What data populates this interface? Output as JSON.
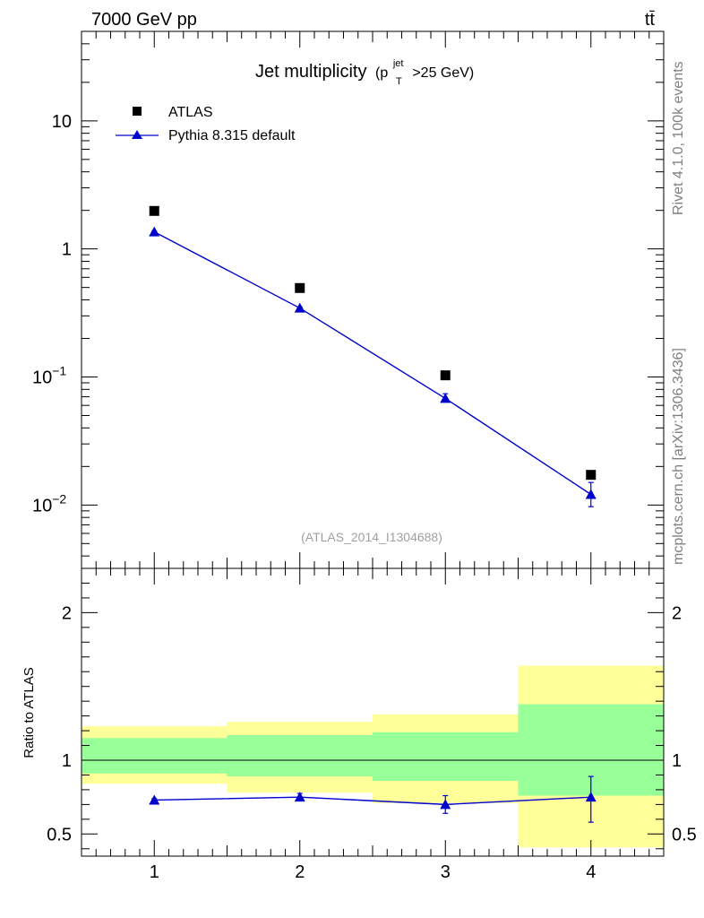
{
  "header": {
    "energy_label": "7000 GeV pp",
    "process_label": "tt̄",
    "side_label_rivet": "Rivet 4.1.0,  100k events",
    "side_label_source": "mcplots.cern.ch [arXiv:1306.3436]"
  },
  "chart_data": [
    {
      "type": "scatter",
      "panel": "main",
      "title_main": "Jet multiplicity",
      "title_sub": "(p",
      "title_sup": "jet",
      "title_subscript": "T",
      "title_tail": ">25 GeV)",
      "watermark": "(ATLAS_2014_I1304688)",
      "yscale": "log",
      "xlim": [
        0.5,
        4.5
      ],
      "ylim": [
        0.0032,
        50
      ],
      "x_ticks": [
        1,
        2,
        3,
        4
      ],
      "y_ticks": [
        {
          "value": 10,
          "base": "10",
          "exp": ""
        },
        {
          "value": 1,
          "base": "1",
          "exp": ""
        },
        {
          "value": 0.1,
          "base": "10",
          "exp": "−1"
        },
        {
          "value": 0.01,
          "base": "10",
          "exp": "−2"
        }
      ],
      "series": [
        {
          "name": "ATLAS",
          "marker": "square",
          "color": "#000000",
          "x": [
            1,
            2,
            3,
            4
          ],
          "values": [
            1.98,
            0.495,
            0.103,
            0.0172
          ]
        },
        {
          "name": "Pythia 8.315 default",
          "marker": "triangle",
          "color": "#0000cc",
          "x": [
            1,
            2,
            3,
            4
          ],
          "values": [
            1.36,
            0.345,
            0.068,
            0.0121
          ],
          "err_low": [
            0.02,
            0.006,
            0.004,
            0.0024
          ],
          "err_high": [
            0.02,
            0.006,
            0.006,
            0.0029
          ]
        }
      ]
    },
    {
      "type": "scatter",
      "panel": "ratio",
      "ylabel": "Ratio to ATLAS",
      "xlim": [
        0.5,
        4.5
      ],
      "ylim": [
        0.35,
        2.3
      ],
      "x_ticks": [
        1,
        2,
        3,
        4
      ],
      "y_ticks": [
        0.5,
        1,
        2
      ],
      "reference_line": 1,
      "bands": [
        {
          "x_low": 0.5,
          "x_high": 1.5,
          "yellow": [
            0.84,
            1.23
          ],
          "green": [
            0.91,
            1.15
          ]
        },
        {
          "x_low": 1.5,
          "x_high": 2.5,
          "yellow": [
            0.78,
            1.26
          ],
          "green": [
            0.89,
            1.17
          ]
        },
        {
          "x_low": 2.5,
          "x_high": 3.5,
          "yellow": [
            0.71,
            1.31
          ],
          "green": [
            0.86,
            1.19
          ]
        },
        {
          "x_low": 3.5,
          "x_high": 4.5,
          "yellow": [
            0.41,
            1.64
          ],
          "green": [
            0.76,
            1.38
          ]
        }
      ],
      "series": [
        {
          "name": "Pythia 8.315 default",
          "color": "#0000cc",
          "x": [
            1,
            2,
            3,
            4
          ],
          "values": [
            0.73,
            0.75,
            0.7,
            0.75
          ],
          "err_low": [
            0.01,
            0.025,
            0.06,
            0.17
          ],
          "err_high": [
            0.01,
            0.025,
            0.06,
            0.14
          ]
        }
      ]
    }
  ]
}
